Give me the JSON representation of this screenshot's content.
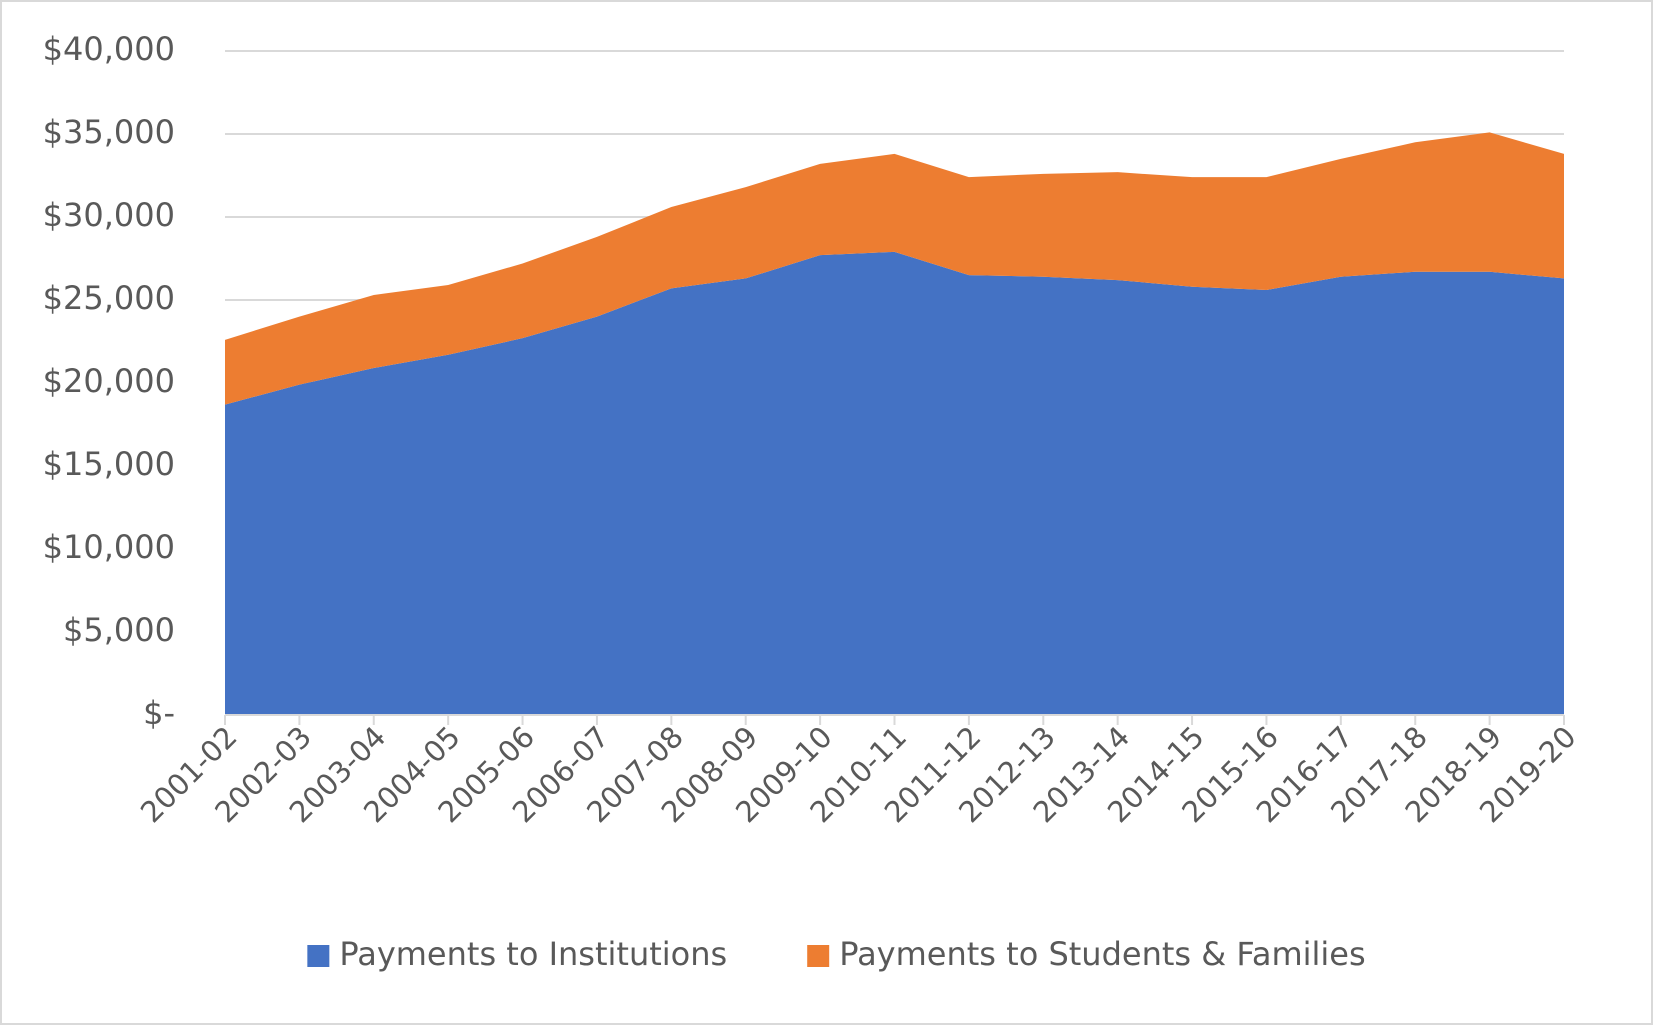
{
  "chart_data": {
    "type": "stacked-area",
    "categories": [
      "2001-02",
      "2002-03",
      "2003-04",
      "2004-05",
      "2005-06",
      "2006-07",
      "2007-08",
      "2008-09",
      "2009-10",
      "2010-11",
      "2011-12",
      "2012-13",
      "2013-14",
      "2014-15",
      "2015-16",
      "2016-17",
      "2017-18",
      "2018-19",
      "2019-20"
    ],
    "series": [
      {
        "name": "Payments to Institutions",
        "color": "#4472c4",
        "values": [
          18700,
          19900,
          20900,
          21700,
          22700,
          24000,
          25700,
          26300,
          27700,
          27900,
          26500,
          26400,
          26200,
          25800,
          25600,
          26400,
          26700,
          26700,
          26300
        ]
      },
      {
        "name": "Payments to Students & Families",
        "color": "#ed7d31",
        "values": [
          3900,
          4100,
          4400,
          4200,
          4500,
          4800,
          4900,
          5500,
          5500,
          5900,
          5900,
          6200,
          6500,
          6600,
          6800,
          7100,
          7800,
          8400,
          7500
        ]
      }
    ],
    "ylim": [
      0,
      40000
    ],
    "yticks": [
      {
        "value": 0,
        "label": "$-"
      },
      {
        "value": 5000,
        "label": "$5,000"
      },
      {
        "value": 10000,
        "label": "$10,000"
      },
      {
        "value": 15000,
        "label": "$15,000"
      },
      {
        "value": 20000,
        "label": "$20,000"
      },
      {
        "value": 25000,
        "label": "$25,000"
      },
      {
        "value": 30000,
        "label": "$30,000"
      },
      {
        "value": 35000,
        "label": "$35,000"
      },
      {
        "value": 40000,
        "label": "$40,000"
      }
    ],
    "grid": true,
    "legend": "bottom"
  }
}
